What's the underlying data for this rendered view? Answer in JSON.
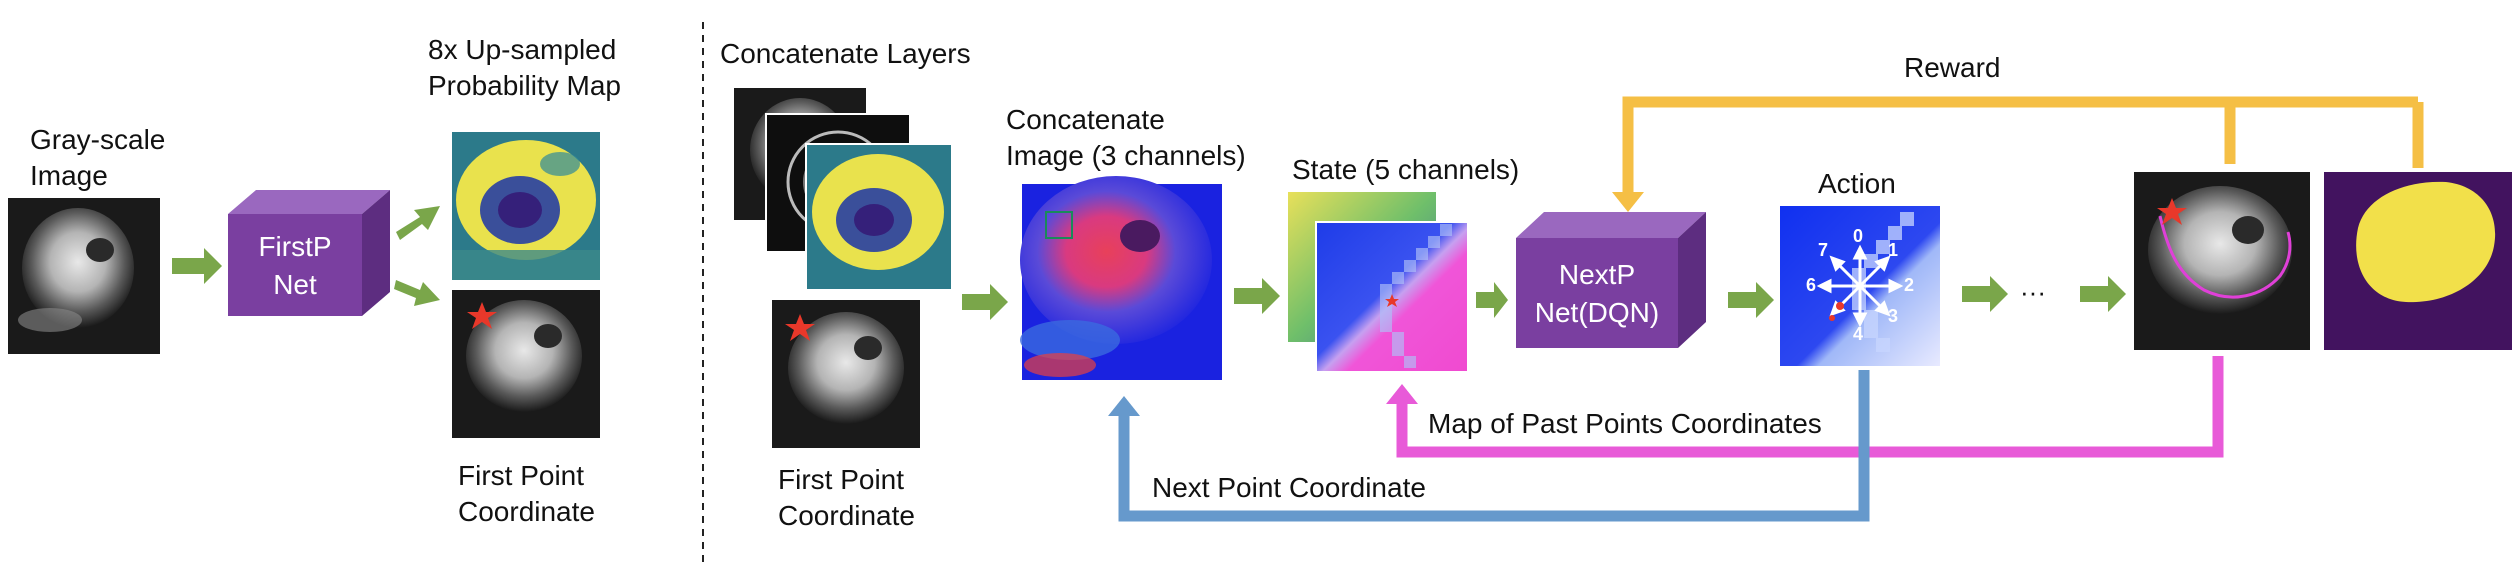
{
  "labels": {
    "grayscale_image": "Gray-scale\nImage",
    "upsampled_map": "8x Up-sampled\nProbability Map",
    "first_point_coord_1": "First Point\nCoordinate",
    "concatenate_layers": "Concatenate Layers",
    "concatenate_image": "Concatenate\nImage (3 channels)",
    "first_point_coord_2": "First Point\nCoordinate",
    "state": "State (5 channels)",
    "action": "Action",
    "reward": "Reward",
    "past_points_map": "Map of Past Points Coordinates",
    "next_point_coord": "Next Point Coordinate",
    "ellipsis": "···"
  },
  "boxes": {
    "firstp_net": "FirstP\nNet",
    "nextp_net": "NextP\nNet(DQN)"
  },
  "action_directions": [
    "0",
    "1",
    "2",
    "3",
    "4",
    "5",
    "6",
    "7"
  ],
  "colors": {
    "net_box": "#7a3fa0",
    "net_box_top": "#9a68bf",
    "net_box_side": "#5d2d80",
    "green_arrow": "#7aa64a",
    "reward_arrow": "#f5bf45",
    "past_points_arrow": "#e85ad8",
    "next_point_arrow": "#6699cc",
    "marker_star": "#e8382a"
  }
}
